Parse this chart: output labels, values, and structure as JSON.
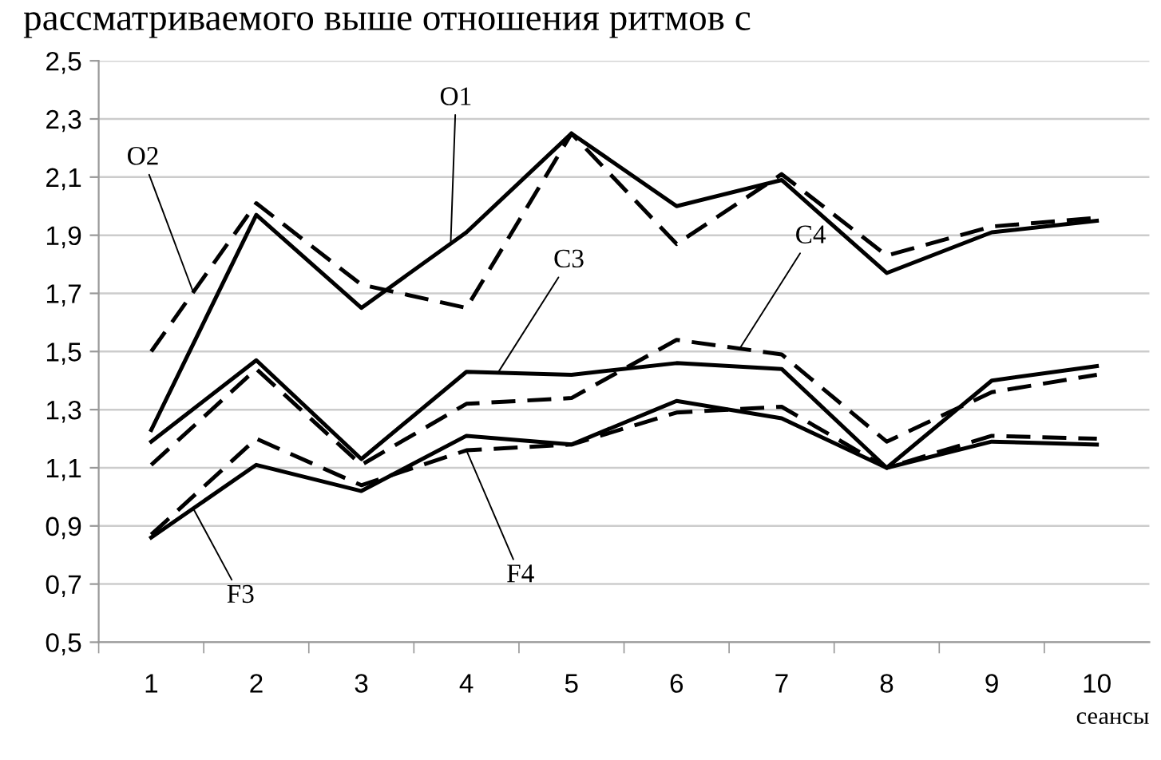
{
  "chart_data": {
    "type": "line",
    "annotations": [
      "рассматриваемого выше отношения ритмов с"
    ],
    "xlabel": "сеансы",
    "categories": [
      "1",
      "2",
      "3",
      "4",
      "5",
      "6",
      "7",
      "8",
      "9",
      "10"
    ],
    "series": [
      {
        "name": "O1",
        "color": "#000000",
        "line_style": "solid",
        "values": [
          1.23,
          1.97,
          1.65,
          1.91,
          2.25,
          2.0,
          2.09,
          1.77,
          1.91,
          1.95
        ]
      },
      {
        "name": "O2",
        "color": "#000000",
        "line_style": "dashed",
        "values": [
          1.5,
          2.01,
          1.73,
          1.65,
          2.25,
          1.87,
          2.11,
          1.83,
          1.93,
          1.96
        ]
      },
      {
        "name": "C3",
        "color": "#000000",
        "line_style": "solid",
        "values": [
          1.19,
          1.47,
          1.13,
          1.43,
          1.42,
          1.46,
          1.44,
          1.1,
          1.4,
          1.45
        ]
      },
      {
        "name": "C4",
        "color": "#000000",
        "line_style": "dashed",
        "values": [
          1.11,
          1.44,
          1.11,
          1.32,
          1.34,
          1.54,
          1.49,
          1.19,
          1.36,
          1.42
        ]
      },
      {
        "name": "F3",
        "color": "#000000",
        "line_style": "solid",
        "values": [
          0.86,
          1.11,
          1.02,
          1.21,
          1.18,
          1.33,
          1.27,
          1.1,
          1.19,
          1.18
        ]
      },
      {
        "name": "F4",
        "color": "#000000",
        "line_style": "dashed",
        "values": [
          0.87,
          1.2,
          1.04,
          1.16,
          1.18,
          1.29,
          1.31,
          1.1,
          1.21,
          1.2
        ]
      }
    ],
    "ylim": [
      0.5,
      2.5
    ],
    "yticks": [
      {
        "value": 0.5,
        "label": "0,5"
      },
      {
        "value": 0.7,
        "label": "0,7"
      },
      {
        "value": 0.9,
        "label": "0,9"
      },
      {
        "value": 1.1,
        "label": "1,1"
      },
      {
        "value": 1.3,
        "label": "1,3"
      },
      {
        "value": 1.5,
        "label": "1,5"
      },
      {
        "value": 1.7,
        "label": "1,7"
      },
      {
        "value": 1.9,
        "label": "1,9"
      },
      {
        "value": 2.1,
        "label": "2,1"
      },
      {
        "value": 2.3,
        "label": "2,3"
      },
      {
        "value": 2.5,
        "label": "2,5"
      }
    ],
    "grid": "y",
    "legend": false,
    "marker": "none"
  }
}
